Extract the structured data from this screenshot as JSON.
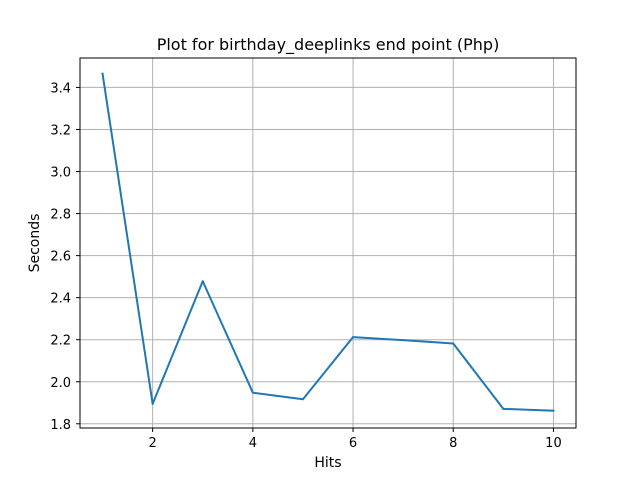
{
  "chart_data": {
    "type": "line",
    "title": "Plot for birthday_deeplinks end point (Php)",
    "xlabel": "Hits",
    "ylabel": "Seconds",
    "xlim": [
      0.55,
      10.45
    ],
    "ylim": [
      1.78,
      3.54
    ],
    "xticks": [
      2,
      4,
      6,
      8,
      10
    ],
    "yticks": [
      1.8,
      2.0,
      2.2,
      2.4,
      2.6,
      2.8,
      3.0,
      3.2,
      3.4
    ],
    "xtick_labels": [
      "2",
      "4",
      "6",
      "8",
      "10"
    ],
    "ytick_labels": [
      "1.8",
      "2.0",
      "2.2",
      "2.4",
      "2.6",
      "2.8",
      "3.0",
      "3.2",
      "3.4"
    ],
    "grid": true,
    "series": [
      {
        "color": "#1f77b4",
        "x": [
          1,
          2,
          3,
          4,
          5,
          6,
          7,
          8,
          9,
          10
        ],
        "y": [
          3.465,
          1.895,
          2.478,
          1.948,
          1.917,
          2.212,
          2.198,
          2.182,
          1.871,
          1.862
        ]
      }
    ]
  }
}
